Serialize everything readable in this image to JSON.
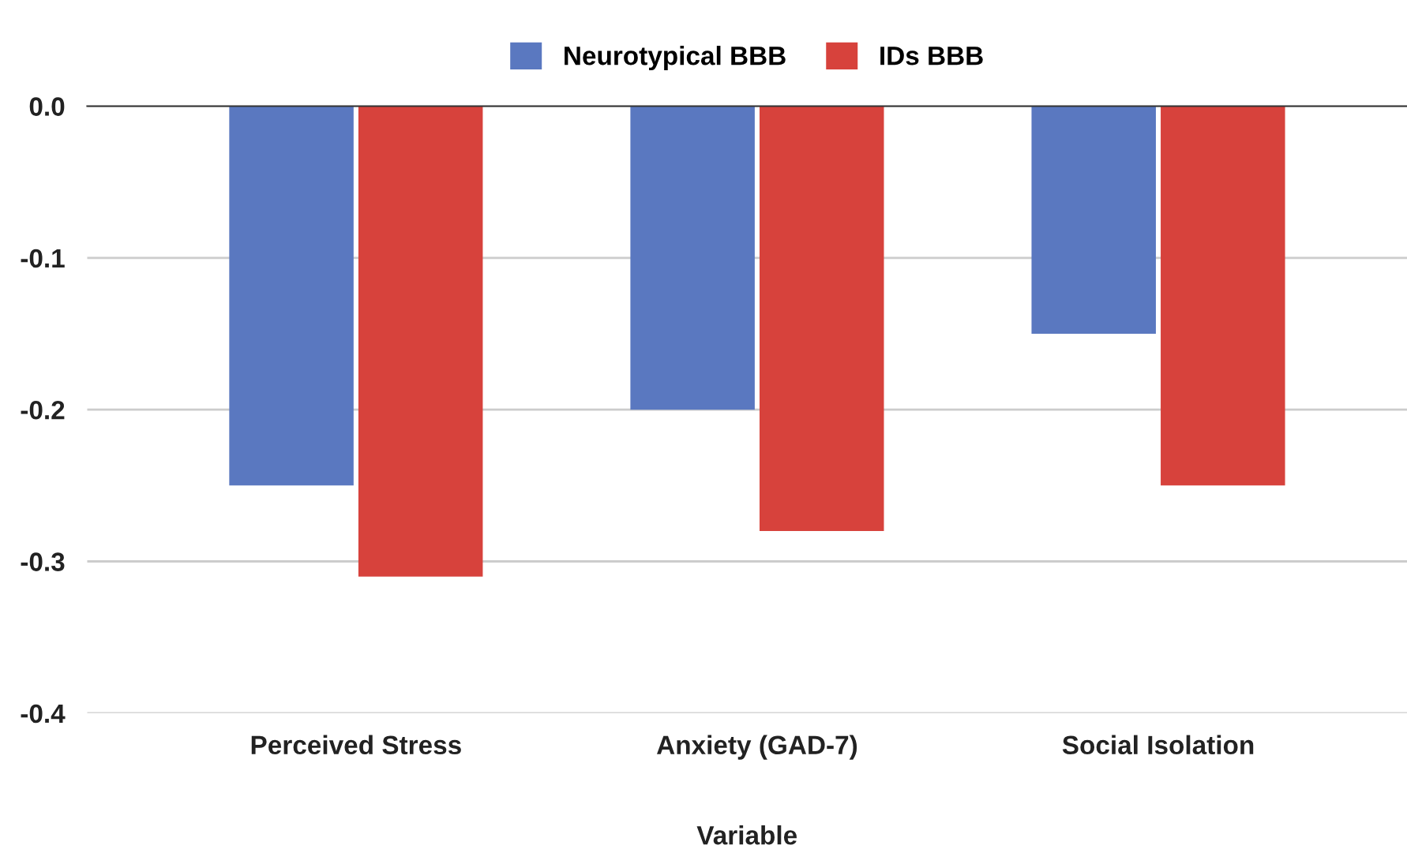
{
  "chart_data": {
    "type": "bar",
    "xlabel": "Variable",
    "categories": [
      "Perceived Stress",
      "Anxiety (GAD-7)",
      "Social Isolation"
    ],
    "series": [
      {
        "name": "Neurotypical BBB",
        "color": "#5a78c0",
        "values": [
          -0.25,
          -0.2,
          -0.15
        ]
      },
      {
        "name": "IDs BBB",
        "color": "#d7423c",
        "values": [
          -0.31,
          -0.28,
          -0.25
        ]
      }
    ],
    "ylim": [
      -0.4,
      0.0
    ],
    "yticks": [
      {
        "value": 0.0,
        "label": "0.0"
      },
      -0.1,
      -0.2,
      -0.3,
      -0.4
    ],
    "grid": "y",
    "legend": "top"
  }
}
